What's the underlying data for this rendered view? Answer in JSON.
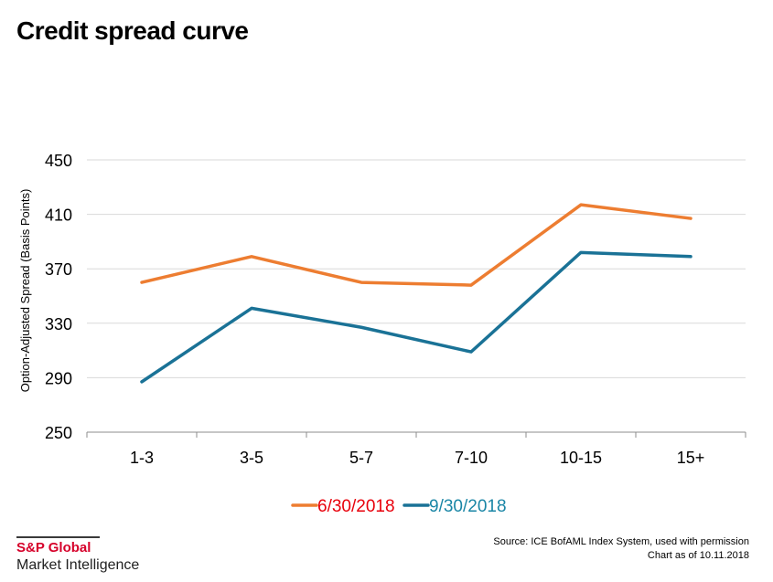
{
  "title": "Credit spread curve",
  "chart_data": {
    "type": "line",
    "title": "Credit spread curve",
    "xlabel": "",
    "ylabel": "Option-Adjusted Spread (Basis Points)",
    "categories": [
      "1-3",
      "3-5",
      "5-7",
      "7-10",
      "10-15",
      "15+"
    ],
    "ylim": [
      250,
      450
    ],
    "yticks": [
      250,
      290,
      330,
      370,
      410,
      450
    ],
    "grid": true,
    "legend_position": "bottom",
    "series": [
      {
        "name": "6/30/2018",
        "color": "#ed7d31",
        "label_color": "#e8000b",
        "values": [
          360,
          379,
          360,
          358,
          417,
          407
        ]
      },
      {
        "name": "9/30/2018",
        "color": "#1a7296",
        "label_color": "#1a86a6",
        "values": [
          287,
          341,
          327,
          309,
          382,
          379
        ]
      }
    ]
  },
  "footer": {
    "brand": "S&P Global",
    "subbrand": "Market Intelligence",
    "source": "Source: ICE BofAML Index System, used with permission",
    "chart_date": "Chart as of 10.11.2018"
  }
}
